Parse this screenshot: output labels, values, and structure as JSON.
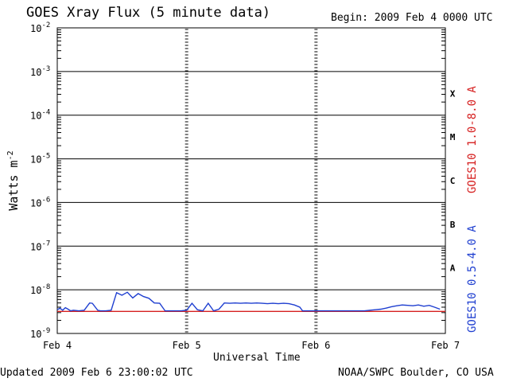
{
  "header": {
    "title": "GOES Xray Flux (5 minute data)",
    "begin": "Begin:  2009 Feb 4 0000 UTC"
  },
  "footer": {
    "updated": "Updated 2009 Feb  6 23:00:02 UTC",
    "credit": "NOAA/SWPC Boulder, CO USA"
  },
  "chart_data": {
    "type": "line",
    "title": "GOES Xray Flux (5 minute data)",
    "xlabel": "Universal Time",
    "ylabel": "Watts m",
    "ylabel_sup": "-2",
    "yscale": "log",
    "ylim": [
      1e-09,
      0.01
    ],
    "xlim": [
      "2009-02-04T00:00",
      "2009-02-07T00:00"
    ],
    "x_ticks": [
      "Feb 4",
      "Feb 5",
      "Feb 6",
      "Feb 7"
    ],
    "y_ticks": [
      {
        "base": "10",
        "exp": "-2",
        "value": 0.01
      },
      {
        "base": "10",
        "exp": "-3",
        "value": 0.001
      },
      {
        "base": "10",
        "exp": "-4",
        "value": 0.0001
      },
      {
        "base": "10",
        "exp": "-5",
        "value": 1e-05
      },
      {
        "base": "10",
        "exp": "-6",
        "value": 1e-06
      },
      {
        "base": "10",
        "exp": "-7",
        "value": 1e-07
      },
      {
        "base": "10",
        "exp": "-8",
        "value": 1e-08
      },
      {
        "base": "10",
        "exp": "-9",
        "value": 1e-09
      }
    ],
    "flare_classes": [
      {
        "label": "X",
        "value": 0.0001
      },
      {
        "label": "M",
        "value": 1e-05
      },
      {
        "label": "C",
        "value": 1e-06
      },
      {
        "label": "B",
        "value": 1e-07
      },
      {
        "label": "A",
        "value": 1e-08
      }
    ],
    "grid": true,
    "legend": "right",
    "colors": {
      "long": "#d62020",
      "short": "#1f3fd0"
    },
    "series": [
      {
        "name": "GOES10 1.0-8.0 A",
        "color": "#d62020",
        "x": [
          "2009-02-04T00:00",
          "2009-02-07T00:00"
        ],
        "values": [
          3.2e-09,
          3.2e-09
        ]
      },
      {
        "name": "GOES10 0.5-4.0 A",
        "color": "#1f3fd0",
        "x": [
          "2009-02-04T00:00",
          "2009-02-04T00:30",
          "2009-02-04T01:00",
          "2009-02-04T01:30",
          "2009-02-04T02:00",
          "2009-02-04T02:30",
          "2009-02-04T03:00",
          "2009-02-04T04:00",
          "2009-02-04T05:00",
          "2009-02-04T06:00",
          "2009-02-04T06:30",
          "2009-02-04T07:30",
          "2009-02-04T08:00",
          "2009-02-04T09:00",
          "2009-02-04T10:00",
          "2009-02-04T11:00",
          "2009-02-04T12:00",
          "2009-02-04T13:00",
          "2009-02-04T14:00",
          "2009-02-04T15:00",
          "2009-02-04T16:00",
          "2009-02-04T17:00",
          "2009-02-04T18:00",
          "2009-02-04T19:00",
          "2009-02-04T20:00",
          "2009-02-04T21:00",
          "2009-02-04T22:00",
          "2009-02-04T23:00",
          "2009-02-05T00:00",
          "2009-02-05T01:00",
          "2009-02-05T02:00",
          "2009-02-05T03:00",
          "2009-02-05T04:00",
          "2009-02-05T05:00",
          "2009-02-05T06:00",
          "2009-02-05T07:00",
          "2009-02-05T08:00",
          "2009-02-05T09:00",
          "2009-02-05T10:00",
          "2009-02-05T11:00",
          "2009-02-05T12:00",
          "2009-02-05T13:00",
          "2009-02-05T14:00",
          "2009-02-05T15:00",
          "2009-02-05T16:00",
          "2009-02-05T17:00",
          "2009-02-05T18:00",
          "2009-02-05T19:00",
          "2009-02-05T20:00",
          "2009-02-05T21:00",
          "2009-02-05T21:30",
          "2009-02-05T22:00",
          "2009-02-05T23:00",
          "2009-02-06T00:00",
          "2009-02-06T03:00",
          "2009-02-06T06:00",
          "2009-02-06T09:00",
          "2009-02-06T10:00",
          "2009-02-06T11:00",
          "2009-02-06T12:00",
          "2009-02-06T13:00",
          "2009-02-06T14:00",
          "2009-02-06T15:00",
          "2009-02-06T16:00",
          "2009-02-06T17:00",
          "2009-02-06T18:00",
          "2009-02-06T19:00",
          "2009-02-06T20:00",
          "2009-02-06T21:00",
          "2009-02-06T22:00",
          "2009-02-06T23:00"
        ],
        "values": [
          3.5e-09,
          3.8e-09,
          3.4e-09,
          3.9e-09,
          3.6e-09,
          3.3e-09,
          3.4e-09,
          3.3e-09,
          3.4e-09,
          5e-09,
          4.9e-09,
          3.4e-09,
          3.3e-09,
          3.3e-09,
          3.4e-09,
          8.6e-09,
          7.5e-09,
          8.8e-09,
          6.5e-09,
          8.2e-09,
          7e-09,
          6.4e-09,
          5e-09,
          4.9e-09,
          3.3e-09,
          3.3e-09,
          3.3e-09,
          3.3e-09,
          3.4e-09,
          4.9e-09,
          3.5e-09,
          3.3e-09,
          4.9e-09,
          3.3e-09,
          3.6e-09,
          5e-09,
          4.9e-09,
          5e-09,
          4.9e-09,
          5e-09,
          4.9e-09,
          5e-09,
          4.9e-09,
          4.8e-09,
          4.9e-09,
          4.8e-09,
          4.9e-09,
          4.8e-09,
          4.5e-09,
          4e-09,
          3.3e-09,
          3.3e-09,
          3.3e-09,
          3.3e-09,
          3.3e-09,
          3.3e-09,
          3.3e-09,
          3.4e-09,
          3.5e-09,
          3.6e-09,
          3.8e-09,
          4.1e-09,
          4.3e-09,
          4.5e-09,
          4.4e-09,
          4.3e-09,
          4.5e-09,
          4.2e-09,
          4.4e-09,
          4e-09,
          3.6e-09
        ]
      }
    ]
  }
}
